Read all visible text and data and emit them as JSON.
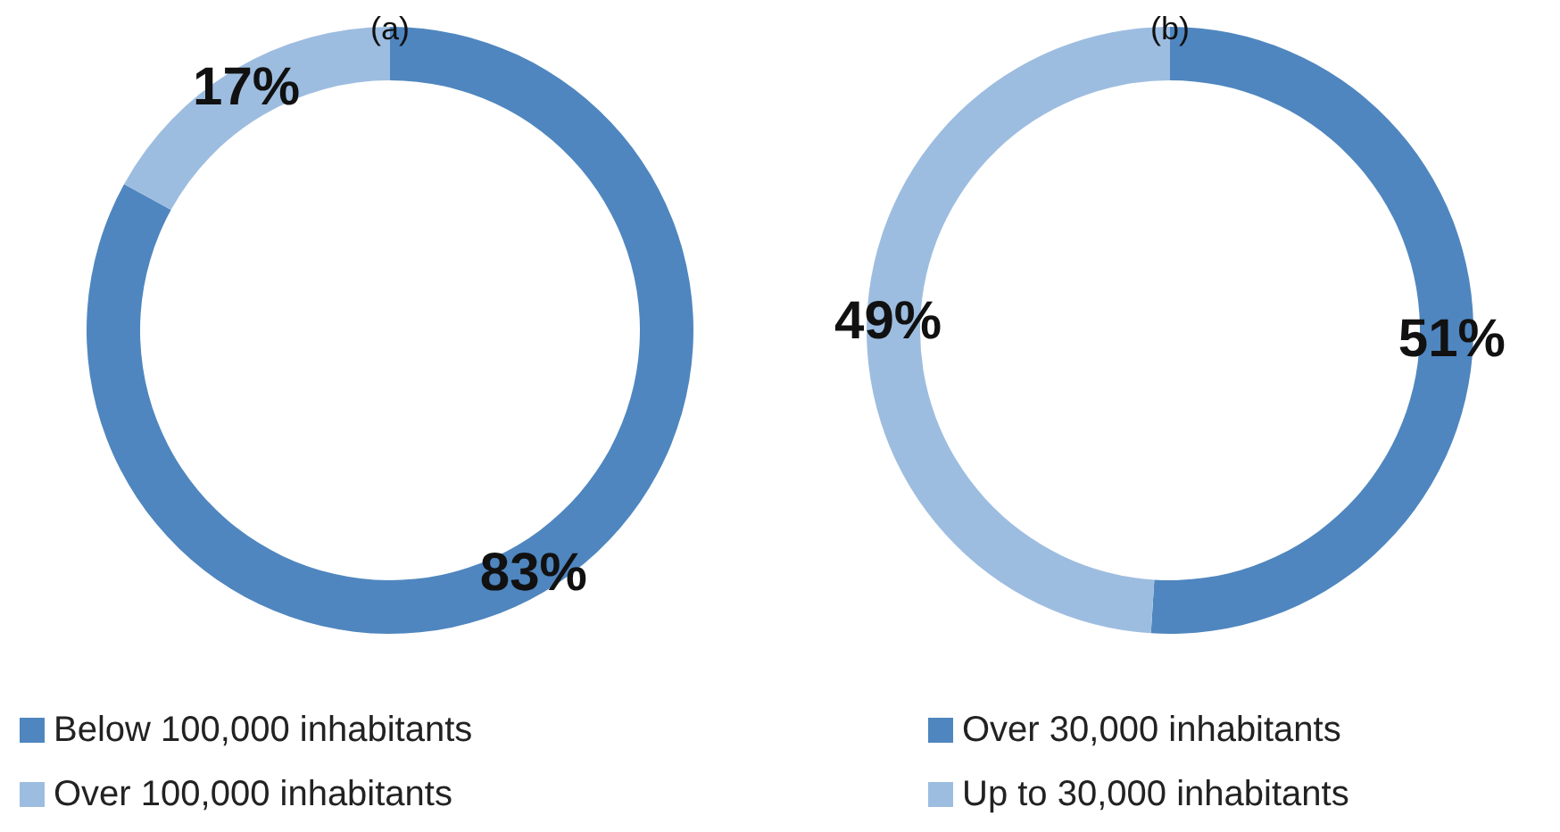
{
  "chart_data": [
    {
      "type": "donut",
      "title": "(a)",
      "categories": [
        "Below 100,000 inhabitants",
        "Over 100,000 inhabitants"
      ],
      "values": [
        83,
        17
      ],
      "colors": [
        "#4f86bf",
        "#9dbde0"
      ],
      "value_labels": [
        "83%",
        "17%"
      ],
      "legend": "bottom"
    },
    {
      "type": "donut",
      "title": "(b)",
      "categories": [
        "Over 30,000 inhabitants",
        "Up to 30,000 inhabitants"
      ],
      "values": [
        51,
        49
      ],
      "colors": [
        "#4f86bf",
        "#9dbde0"
      ],
      "value_labels": [
        "51%",
        "49%"
      ],
      "legend": "bottom"
    }
  ]
}
